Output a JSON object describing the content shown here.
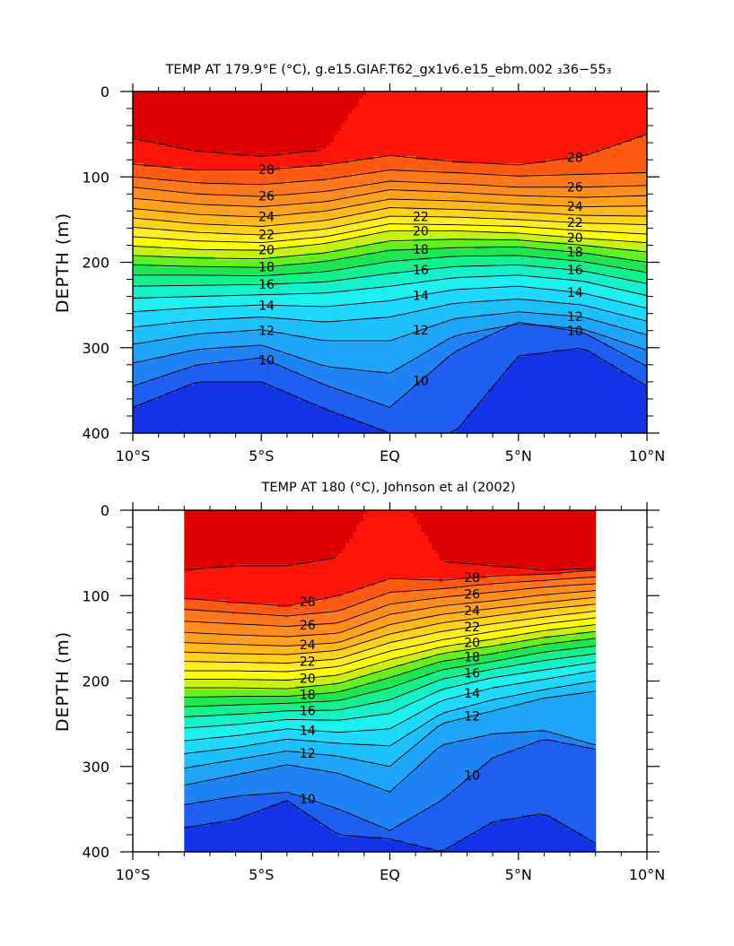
{
  "chart_data": [
    {
      "type": "heatmap",
      "title": "TEMP AT 179.9°E (°C), g.e15.GIAF.T62_gx1v6.e15_ebm.002 ₃36−55₃",
      "xlabel": "",
      "ylabel": "DEPTH (m)",
      "x_ticks": [
        "10°S",
        "5°S",
        "EQ",
        "5°N",
        "10°N"
      ],
      "x_tick_values": [
        -10,
        -5,
        0,
        5,
        10
      ],
      "xlim": [
        -10,
        10
      ],
      "y_ticks": [
        "0",
        "100",
        "200",
        "300",
        "400"
      ],
      "y_tick_values": [
        0,
        100,
        200,
        300,
        400
      ],
      "ylim": [
        400,
        0
      ],
      "y_inverted": true,
      "data_xlim": [
        -10,
        10
      ],
      "contour_interval": 1,
      "contour_labels": [
        "28",
        "26",
        "24",
        "22",
        "20",
        "18",
        "16",
        "14",
        "12",
        "10"
      ],
      "isotherm_depths": {
        "x": [
          -10,
          -7.5,
          -5,
          -2.5,
          0,
          2.5,
          5,
          7.5,
          10
        ],
        "levels": [
          {
            "t": 29,
            "depth": [
              55,
              70,
              76,
              68,
              null,
              null,
              null,
              null,
              null
            ]
          },
          {
            "t": 28,
            "depth": [
              85,
              92,
              92,
              86,
              75,
              82,
              86,
              76,
              50
            ]
          },
          {
            "t": 27,
            "depth": [
              100,
              107,
              109,
              103,
              92,
              95,
              99,
              97,
              95
            ]
          },
          {
            "t": 26,
            "depth": [
              112,
              120,
              123,
              117,
              105,
              108,
              112,
              112,
              110
            ]
          },
          {
            "t": 25,
            "depth": [
              125,
              132,
              135,
              129,
              115,
              118,
              122,
              124,
              122
            ]
          },
          {
            "t": 24,
            "depth": [
              137,
              144,
              147,
              140,
              126,
              128,
              132,
              135,
              134
            ]
          },
          {
            "t": 23,
            "depth": [
              148,
              155,
              158,
              151,
              136,
              138,
              141,
              145,
              146
            ]
          },
          {
            "t": 22,
            "depth": [
              159,
              165,
              168,
              161,
              146,
              147,
              150,
              154,
              156
            ]
          },
          {
            "t": 21,
            "depth": [
              170,
              175,
              177,
              170,
              155,
              156,
              158,
              163,
              167
            ]
          },
          {
            "t": 20,
            "depth": [
              181,
              185,
              186,
              178,
              163,
              163,
              166,
              172,
              177
            ]
          },
          {
            "t": 19,
            "depth": [
              192,
              195,
              196,
              189,
              175,
              173,
              174,
              180,
              188
            ]
          },
          {
            "t": 18,
            "depth": [
              203,
              205,
              206,
              199,
              186,
              183,
              182,
              189,
              200
            ]
          },
          {
            "t": 17,
            "depth": [
              215,
              215,
              216,
              211,
              199,
              193,
              192,
              199,
              212
            ]
          },
          {
            "t": 16,
            "depth": [
              228,
              227,
              226,
              223,
              213,
              205,
              203,
              210,
              225
            ]
          },
          {
            "t": 15,
            "depth": [
              242,
              240,
              238,
              236,
              228,
              218,
              215,
              222,
              239
            ]
          },
          {
            "t": 14,
            "depth": [
              258,
              253,
              250,
              252,
              245,
              232,
              228,
              236,
              254
            ]
          },
          {
            "t": 13,
            "depth": [
              276,
              268,
              264,
              270,
              264,
              248,
              243,
              250,
              269
            ]
          },
          {
            "t": 12,
            "depth": [
              296,
              284,
              279,
              292,
              292,
              266,
              258,
              264,
              285
            ]
          },
          {
            "t": 11,
            "depth": [
              318,
              302,
              297,
              322,
              330,
              286,
              272,
              278,
              303
            ]
          },
          {
            "t": 10,
            "depth": [
              345,
              320,
              312,
              344,
              370,
              305,
              270,
              282,
              322
            ]
          },
          {
            "t": 9,
            "depth": [
              370,
              340,
              340,
              372,
              400,
              400,
              310,
              300,
              345
            ]
          }
        ]
      }
    },
    {
      "type": "heatmap",
      "title": "TEMP AT 180 (°C), Johnson et al (2002)",
      "xlabel": "",
      "ylabel": "DEPTH (m)",
      "x_ticks": [
        "10°S",
        "5°S",
        "EQ",
        "5°N",
        "10°N"
      ],
      "x_tick_values": [
        -10,
        -5,
        0,
        5,
        10
      ],
      "xlim": [
        -10,
        10
      ],
      "y_ticks": [
        "0",
        "100",
        "200",
        "300",
        "400"
      ],
      "y_tick_values": [
        0,
        100,
        200,
        300,
        400
      ],
      "ylim": [
        400,
        0
      ],
      "y_inverted": true,
      "data_xlim": [
        -8,
        8
      ],
      "contour_interval": 1,
      "contour_labels": [
        "28",
        "26",
        "24",
        "22",
        "20",
        "18",
        "16",
        "14",
        "12",
        "10"
      ],
      "isotherm_depths": {
        "x": [
          -8,
          -6,
          -4,
          -2,
          0,
          2,
          4,
          6,
          8
        ],
        "levels": [
          {
            "t": 29,
            "depth": [
              70,
              65,
              65,
              55,
              null,
              60,
              65,
              70,
              68
            ]
          },
          {
            "t": 28,
            "depth": [
              103,
              108,
              112,
              100,
              80,
              82,
              77,
              75,
              70
            ]
          },
          {
            "t": 27,
            "depth": [
              116,
              120,
              124,
              118,
              96,
              92,
              86,
              82,
              78
            ]
          },
          {
            "t": 26,
            "depth": [
              130,
              133,
              136,
              132,
              110,
              102,
              96,
              90,
              86
            ]
          },
          {
            "t": 25,
            "depth": [
              143,
              146,
              148,
              144,
              122,
              112,
              106,
              99,
              94
            ]
          },
          {
            "t": 24,
            "depth": [
              155,
              157,
              159,
              155,
              134,
              122,
              115,
              108,
              102
            ]
          },
          {
            "t": 23,
            "depth": [
              166,
              168,
              169,
              164,
              145,
              132,
              124,
              116,
              110
            ]
          },
          {
            "t": 22,
            "depth": [
              177,
              178,
              179,
              174,
              155,
              142,
              133,
              125,
              118
            ]
          },
          {
            "t": 21,
            "depth": [
              188,
              188,
              189,
              183,
              165,
              152,
              142,
              133,
              126
            ]
          },
          {
            "t": 20,
            "depth": [
              198,
              198,
              199,
              193,
              175,
              160,
              151,
              141,
              134
            ]
          },
          {
            "t": 19,
            "depth": [
              208,
              208,
              209,
              203,
              185,
              168,
              159,
              149,
              142
            ]
          },
          {
            "t": 18,
            "depth": [
              219,
              218,
              218,
              213,
              196,
              177,
              168,
              157,
              150
            ]
          },
          {
            "t": 17,
            "depth": [
              230,
              228,
              226,
              223,
              208,
              187,
              177,
              166,
              159
            ]
          },
          {
            "t": 16,
            "depth": [
              242,
              239,
              235,
              234,
              222,
              198,
              186,
              176,
              168
            ]
          },
          {
            "t": 15,
            "depth": [
              255,
              251,
              245,
              246,
              238,
              210,
              196,
              187,
              178
            ]
          },
          {
            "t": 14,
            "depth": [
              270,
              264,
              256,
              260,
              256,
              223,
              208,
              198,
              188
            ]
          },
          {
            "t": 13,
            "depth": [
              285,
              278,
              268,
              273,
              276,
              238,
              222,
              210,
              200
            ]
          },
          {
            "t": 12,
            "depth": [
              302,
              292,
              282,
              288,
              300,
              250,
              235,
              220,
              212
            ]
          },
          {
            "t": 11,
            "depth": [
              322,
              310,
              298,
              308,
              330,
              275,
              262,
              258,
              275
            ]
          },
          {
            "t": 10,
            "depth": [
              345,
              335,
              330,
              350,
              375,
              340,
              290,
              268,
              280
            ]
          },
          {
            "t": 9,
            "depth": [
              372,
              362,
              340,
              380,
              385,
              400,
              365,
              355,
              390
            ]
          }
        ]
      }
    }
  ],
  "colorscale": {
    "bands": [
      {
        "max": 9,
        "color": "#1432e6"
      },
      {
        "max": 10,
        "color": "#1e5ef0"
      },
      {
        "max": 11,
        "color": "#1f82f5"
      },
      {
        "max": 12,
        "color": "#1fa5f8"
      },
      {
        "max": 13,
        "color": "#1ec0fb"
      },
      {
        "max": 14,
        "color": "#1fd8fd"
      },
      {
        "max": 15,
        "color": "#1ef0f0"
      },
      {
        "max": 16,
        "color": "#14f0c8"
      },
      {
        "max": 17,
        "color": "#14f08c"
      },
      {
        "max": 18,
        "color": "#1ee650"
      },
      {
        "max": 19,
        "color": "#64f01e"
      },
      {
        "max": 20,
        "color": "#c8f014"
      },
      {
        "max": 21,
        "color": "#ffff00"
      },
      {
        "max": 22,
        "color": "#ffeb28"
      },
      {
        "max": 23,
        "color": "#ffd21e"
      },
      {
        "max": 24,
        "color": "#ffb91e"
      },
      {
        "max": 25,
        "color": "#ffa01e"
      },
      {
        "max": 26,
        "color": "#ff8c1e"
      },
      {
        "max": 27,
        "color": "#ff781e"
      },
      {
        "max": 28,
        "color": "#ff5a14"
      },
      {
        "max": 29,
        "color": "#ff140a"
      },
      {
        "max": 99,
        "color": "#dc0000"
      }
    ]
  }
}
